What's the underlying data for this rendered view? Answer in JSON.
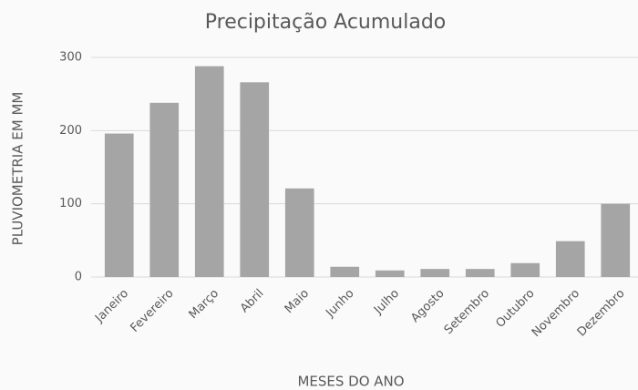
{
  "chart_data": {
    "type": "bar",
    "title": "Precipitação Acumulado",
    "x_label": "MESES DO ANO",
    "y_label": "PLUVIOMETRIA EM MM",
    "categories": [
      "Janeiro",
      "Fevereiro",
      "Março",
      "Abril",
      "Maio",
      "Junho",
      "Julho",
      "Agosto",
      "Setembro",
      "Outubro",
      "Novembro",
      "Dezembro"
    ],
    "values": [
      196,
      238,
      288,
      266,
      121,
      14,
      9,
      11,
      11,
      19,
      49,
      100
    ],
    "color": "#a5a5a5",
    "ylim": [
      0,
      300
    ],
    "yticks": [
      0,
      100,
      200,
      300
    ],
    "grid": true
  }
}
